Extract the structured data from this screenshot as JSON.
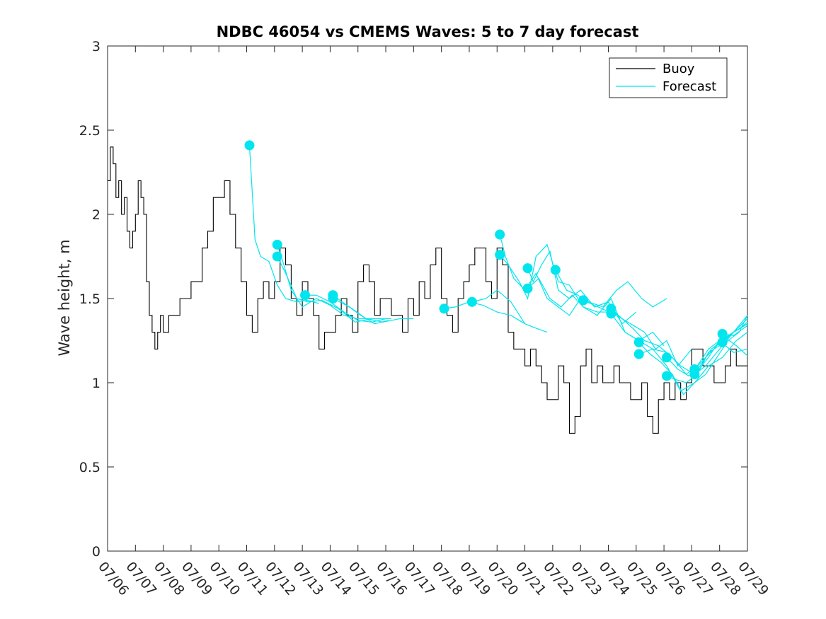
{
  "chart_data": {
    "type": "line",
    "title": "NDBC 46054 vs CMEMS Waves: 5 to 7 day forecast",
    "xlabel": "",
    "ylabel": "Wave height, m",
    "xlim": [
      "07/06",
      "07/29"
    ],
    "ylim": [
      0,
      3
    ],
    "yticks": [
      "0",
      "0.5",
      "1",
      "1.5",
      "2",
      "2.5",
      "3"
    ],
    "xticks": [
      "07/06",
      "07/07",
      "07/08",
      "07/09",
      "07/10",
      "07/11",
      "07/12",
      "07/13",
      "07/14",
      "07/15",
      "07/16",
      "07/17",
      "07/18",
      "07/19",
      "07/20",
      "07/21",
      "07/22",
      "07/23",
      "07/24",
      "07/25",
      "07/26",
      "07/27",
      "07/28",
      "07/29"
    ],
    "grid": false,
    "legend": {
      "position": "top-right",
      "entries": [
        {
          "name": "Buoy",
          "color": "#000000"
        },
        {
          "name": "Forecast",
          "color": "#00e5ee"
        }
      ]
    },
    "series": [
      {
        "name": "Buoy",
        "color": "#000000",
        "x": [
          0,
          0.1,
          0.2,
          0.3,
          0.4,
          0.5,
          0.6,
          0.7,
          0.8,
          0.9,
          1.0,
          1.1,
          1.2,
          1.3,
          1.4,
          1.5,
          1.6,
          1.7,
          1.8,
          1.9,
          2.0,
          2.2,
          2.4,
          2.6,
          2.8,
          3.0,
          3.2,
          3.4,
          3.6,
          3.8,
          4.0,
          4.2,
          4.4,
          4.6,
          4.8,
          5.0,
          5.2,
          5.4,
          5.6,
          5.8,
          6.0,
          6.2,
          6.4,
          6.6,
          6.8,
          7.0,
          7.2,
          7.4,
          7.6,
          7.8,
          8.0,
          8.2,
          8.4,
          8.6,
          8.8,
          9.0,
          9.2,
          9.4,
          9.6,
          9.8,
          10.0,
          10.2,
          10.4,
          10.6,
          10.8,
          11.0,
          11.2,
          11.4,
          11.6,
          11.8,
          12.0,
          12.2,
          12.4,
          12.6,
          12.8,
          13.0,
          13.2,
          13.4,
          13.6,
          13.8,
          14.0,
          14.2,
          14.4,
          14.6,
          14.8,
          15.0,
          15.2,
          15.4,
          15.6,
          15.8,
          16.0,
          16.2,
          16.4,
          16.6,
          16.8,
          17.0,
          17.2,
          17.4,
          17.6,
          17.8,
          18.0,
          18.2,
          18.4,
          18.6,
          18.8,
          19.0,
          19.2,
          19.4,
          19.6,
          19.8,
          20.0,
          20.2,
          20.4,
          20.6,
          20.8,
          21.0,
          21.2,
          21.4,
          21.6,
          21.8,
          22.0,
          22.2,
          22.4,
          22.6,
          22.8,
          23.0
        ],
        "values": [
          2.2,
          2.4,
          2.3,
          2.1,
          2.2,
          2.0,
          2.1,
          1.9,
          1.8,
          1.9,
          2.0,
          2.2,
          2.1,
          2.0,
          1.6,
          1.4,
          1.3,
          1.2,
          1.3,
          1.4,
          1.3,
          1.4,
          1.4,
          1.5,
          1.5,
          1.6,
          1.6,
          1.8,
          1.9,
          2.1,
          2.1,
          2.2,
          2.0,
          1.8,
          1.6,
          1.4,
          1.3,
          1.5,
          1.6,
          1.5,
          1.6,
          1.8,
          1.7,
          1.5,
          1.4,
          1.6,
          1.5,
          1.4,
          1.2,
          1.3,
          1.3,
          1.4,
          1.5,
          1.4,
          1.3,
          1.6,
          1.7,
          1.6,
          1.4,
          1.5,
          1.5,
          1.4,
          1.4,
          1.3,
          1.5,
          1.4,
          1.6,
          1.5,
          1.7,
          1.8,
          1.5,
          1.4,
          1.3,
          1.5,
          1.6,
          1.7,
          1.8,
          1.8,
          1.6,
          1.5,
          1.8,
          1.7,
          1.3,
          1.2,
          1.2,
          1.1,
          1.2,
          1.1,
          1.0,
          0.9,
          0.9,
          1.1,
          1.0,
          0.7,
          0.8,
          1.1,
          1.2,
          1.0,
          1.1,
          1.0,
          1.0,
          1.1,
          1.0,
          1.0,
          0.9,
          0.9,
          1.0,
          0.8,
          0.7,
          0.9,
          1.0,
          0.9,
          1.0,
          0.9,
          1.0,
          1.2,
          1.2,
          1.1,
          1.1,
          1.0,
          1.0,
          1.1,
          1.2,
          1.1,
          1.1,
          1.1
        ]
      },
      {
        "name": "Forecast",
        "color": "#00e5ee",
        "runs": [
          {
            "x": [
              5.1,
              5.3,
              5.5,
              5.8,
              6.1,
              6.4,
              6.8,
              7.2,
              7.6
            ],
            "values": [
              2.41,
              1.85,
              1.75,
              1.72,
              1.58,
              1.5,
              1.48,
              1.49,
              1.47
            ]
          },
          {
            "x": [
              6.1,
              6.3,
              6.6,
              7.0,
              7.5,
              8.0,
              8.5,
              9.0,
              9.6
            ],
            "values": [
              1.82,
              1.72,
              1.55,
              1.45,
              1.5,
              1.46,
              1.4,
              1.38,
              1.38
            ]
          },
          {
            "x": [
              6.1,
              6.4,
              6.8,
              7.2,
              7.7,
              8.3,
              8.9,
              9.5,
              10.2
            ],
            "values": [
              1.75,
              1.65,
              1.5,
              1.48,
              1.49,
              1.44,
              1.36,
              1.38,
              1.38
            ]
          },
          {
            "x": [
              7.1,
              7.5,
              8.0,
              8.5,
              9.0,
              9.5,
              10.0
            ],
            "values": [
              1.52,
              1.52,
              1.48,
              1.42,
              1.37,
              1.36,
              1.38
            ]
          },
          {
            "x": [
              8.1,
              8.6,
              9.1,
              9.6,
              10.1
            ],
            "values": [
              1.52,
              1.46,
              1.4,
              1.35,
              1.37
            ]
          },
          {
            "x": [
              8.1,
              8.7,
              9.3,
              9.9,
              10.5,
              11.0
            ],
            "values": [
              1.5,
              1.45,
              1.38,
              1.36,
              1.38,
              1.38
            ]
          },
          {
            "x": [
              12.1,
              12.5,
              13.0,
              13.5,
              14.0,
              14.5,
              15.0
            ],
            "values": [
              1.44,
              1.45,
              1.48,
              1.46,
              1.42,
              1.4,
              1.35
            ]
          },
          {
            "x": [
              13.1,
              13.6,
              14.0,
              14.5,
              15.0,
              15.3,
              15.8
            ],
            "values": [
              1.48,
              1.5,
              1.55,
              1.48,
              1.35,
              1.33,
              1.3
            ]
          },
          {
            "x": [
              14.1,
              14.3,
              14.6,
              15.0,
              15.4,
              15.8,
              16.2,
              16.6,
              17.0
            ],
            "values": [
              1.88,
              1.75,
              1.62,
              1.55,
              1.65,
              1.5,
              1.45,
              1.4,
              1.5
            ]
          },
          {
            "x": [
              14.1,
              14.4,
              14.8,
              15.1,
              15.4,
              15.8,
              16.2,
              16.6,
              17.1,
              17.6,
              18.1
            ],
            "values": [
              1.76,
              1.7,
              1.6,
              1.5,
              1.75,
              1.82,
              1.6,
              1.58,
              1.45,
              1.42,
              1.42
            ]
          },
          {
            "x": [
              15.1,
              15.3,
              15.6,
              15.9,
              16.2,
              16.6,
              17.0,
              17.5,
              18.0,
              18.5,
              19.0
            ],
            "values": [
              1.68,
              1.6,
              1.7,
              1.78,
              1.55,
              1.5,
              1.55,
              1.45,
              1.48,
              1.35,
              1.42
            ]
          },
          {
            "x": [
              15.1,
              15.5,
              15.9,
              16.3,
              16.7,
              17.1,
              17.6,
              18.1,
              18.6,
              19.1,
              19.6,
              20.0
            ],
            "values": [
              1.56,
              1.62,
              1.5,
              1.45,
              1.52,
              1.45,
              1.4,
              1.5,
              1.3,
              1.25,
              1.3,
              1.22
            ]
          },
          {
            "x": [
              16.1,
              16.5,
              16.9,
              17.3,
              17.8,
              18.3,
              18.7,
              19.2,
              19.6,
              20.1
            ],
            "values": [
              1.67,
              1.55,
              1.52,
              1.48,
              1.45,
              1.55,
              1.6,
              1.5,
              1.45,
              1.5
            ]
          },
          {
            "x": [
              17.1,
              17.5,
              17.9,
              18.3,
              18.8,
              19.3,
              19.7,
              20.1,
              20.5,
              21.0
            ],
            "values": [
              1.49,
              1.46,
              1.43,
              1.4,
              1.35,
              1.3,
              1.2,
              1.25,
              1.1,
              1.2
            ]
          },
          {
            "x": [
              18.1,
              18.5,
              18.9,
              19.3,
              19.8,
              20.3,
              20.8,
              21.2,
              21.6,
              22.0,
              22.5,
              23.0
            ],
            "values": [
              1.44,
              1.38,
              1.32,
              1.25,
              1.22,
              1.15,
              1.05,
              1.1,
              1.2,
              1.25,
              1.18,
              1.2
            ]
          },
          {
            "x": [
              18.1,
              18.6,
              19.1,
              19.6,
              20.1,
              20.6,
              21.1,
              21.6,
              22.1,
              22.6,
              23.0
            ],
            "values": [
              1.41,
              1.3,
              1.25,
              1.2,
              1.1,
              0.95,
              1.0,
              1.1,
              1.15,
              1.25,
              1.3
            ]
          },
          {
            "x": [
              19.1,
              19.5,
              19.9,
              20.3,
              20.7,
              21.1,
              21.5,
              21.9,
              22.3,
              22.7,
              23.0
            ],
            "values": [
              1.24,
              1.17,
              1.12,
              1.05,
              0.93,
              1.0,
              1.05,
              1.15,
              1.25,
              1.3,
              1.4
            ]
          },
          {
            "x": [
              19.1,
              19.6,
              20.1,
              20.6,
              21.1,
              21.6,
              22.1,
              22.6,
              23.0
            ],
            "values": [
              1.17,
              1.2,
              1.18,
              1.1,
              1.05,
              1.15,
              1.28,
              1.22,
              1.16
            ]
          },
          {
            "x": [
              20.1,
              20.5,
              20.9,
              21.3,
              21.7,
              22.1,
              22.5,
              23.0
            ],
            "values": [
              1.15,
              1.08,
              1.04,
              1.1,
              1.2,
              1.25,
              1.3,
              1.35
            ]
          },
          {
            "x": [
              20.1,
              20.4,
              20.8,
              21.2,
              21.6,
              22.0,
              22.5,
              23.0
            ],
            "values": [
              1.04,
              1.02,
              1.0,
              1.05,
              1.18,
              1.22,
              1.3,
              1.38
            ]
          },
          {
            "x": [
              21.1,
              21.5,
              21.9,
              22.3,
              22.7,
              23.0
            ],
            "values": [
              1.08,
              1.15,
              1.22,
              1.28,
              1.32,
              1.36
            ]
          },
          {
            "x": [
              21.1,
              21.5,
              22.0,
              22.5,
              23.0
            ],
            "values": [
              1.05,
              1.1,
              1.2,
              1.3,
              1.4
            ]
          },
          {
            "x": [
              22.1,
              22.5,
              23.0
            ],
            "values": [
              1.29,
              1.28,
              1.34
            ]
          },
          {
            "x": [
              22.1,
              22.5,
              23.0
            ],
            "values": [
              1.24,
              1.3,
              1.35
            ]
          }
        ],
        "markers": [
          [
            5.1,
            2.41
          ],
          [
            6.1,
            1.82
          ],
          [
            6.1,
            1.75
          ],
          [
            7.1,
            1.52
          ],
          [
            8.1,
            1.52
          ],
          [
            8.1,
            1.5
          ],
          [
            12.1,
            1.44
          ],
          [
            13.1,
            1.48
          ],
          [
            14.1,
            1.88
          ],
          [
            14.1,
            1.76
          ],
          [
            15.1,
            1.68
          ],
          [
            15.1,
            1.56
          ],
          [
            16.1,
            1.67
          ],
          [
            17.1,
            1.49
          ],
          [
            18.1,
            1.44
          ],
          [
            18.1,
            1.41
          ],
          [
            19.1,
            1.24
          ],
          [
            19.1,
            1.17
          ],
          [
            20.1,
            1.15
          ],
          [
            20.1,
            1.04
          ],
          [
            21.1,
            1.08
          ],
          [
            21.1,
            1.05
          ],
          [
            22.1,
            1.29
          ],
          [
            22.1,
            1.24
          ]
        ]
      }
    ]
  }
}
